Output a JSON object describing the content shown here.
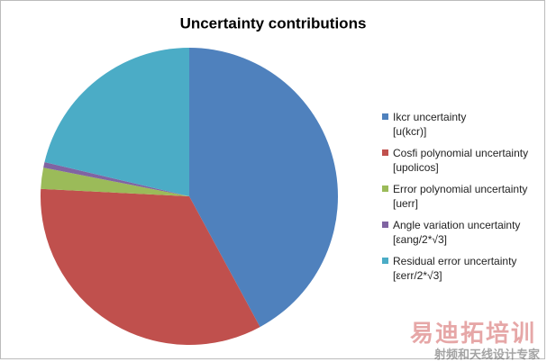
{
  "chart_data": {
    "type": "pie",
    "title": "Uncertainty contributions",
    "categories": [
      "Ikcr uncertainty\n[u(kcr)]",
      "Cosfi polynomial uncertainty\n[upolicos]",
      "Error polynomial uncertainty\n[uerr]",
      "Angle variation uncertainty\n[εang/2*√3]",
      "Residual error uncertainty\n[εerr/2*√3]"
    ],
    "values": [
      42.1,
      33.7,
      2.3,
      0.6,
      21.3
    ],
    "colors": [
      "#4f81bd",
      "#c0504d",
      "#9bbb59",
      "#8064a2",
      "#4bacc6"
    ],
    "legend": "right"
  },
  "watermark": {
    "title": "易迪拓培训",
    "subtitle": "射频和天线设计专家"
  }
}
